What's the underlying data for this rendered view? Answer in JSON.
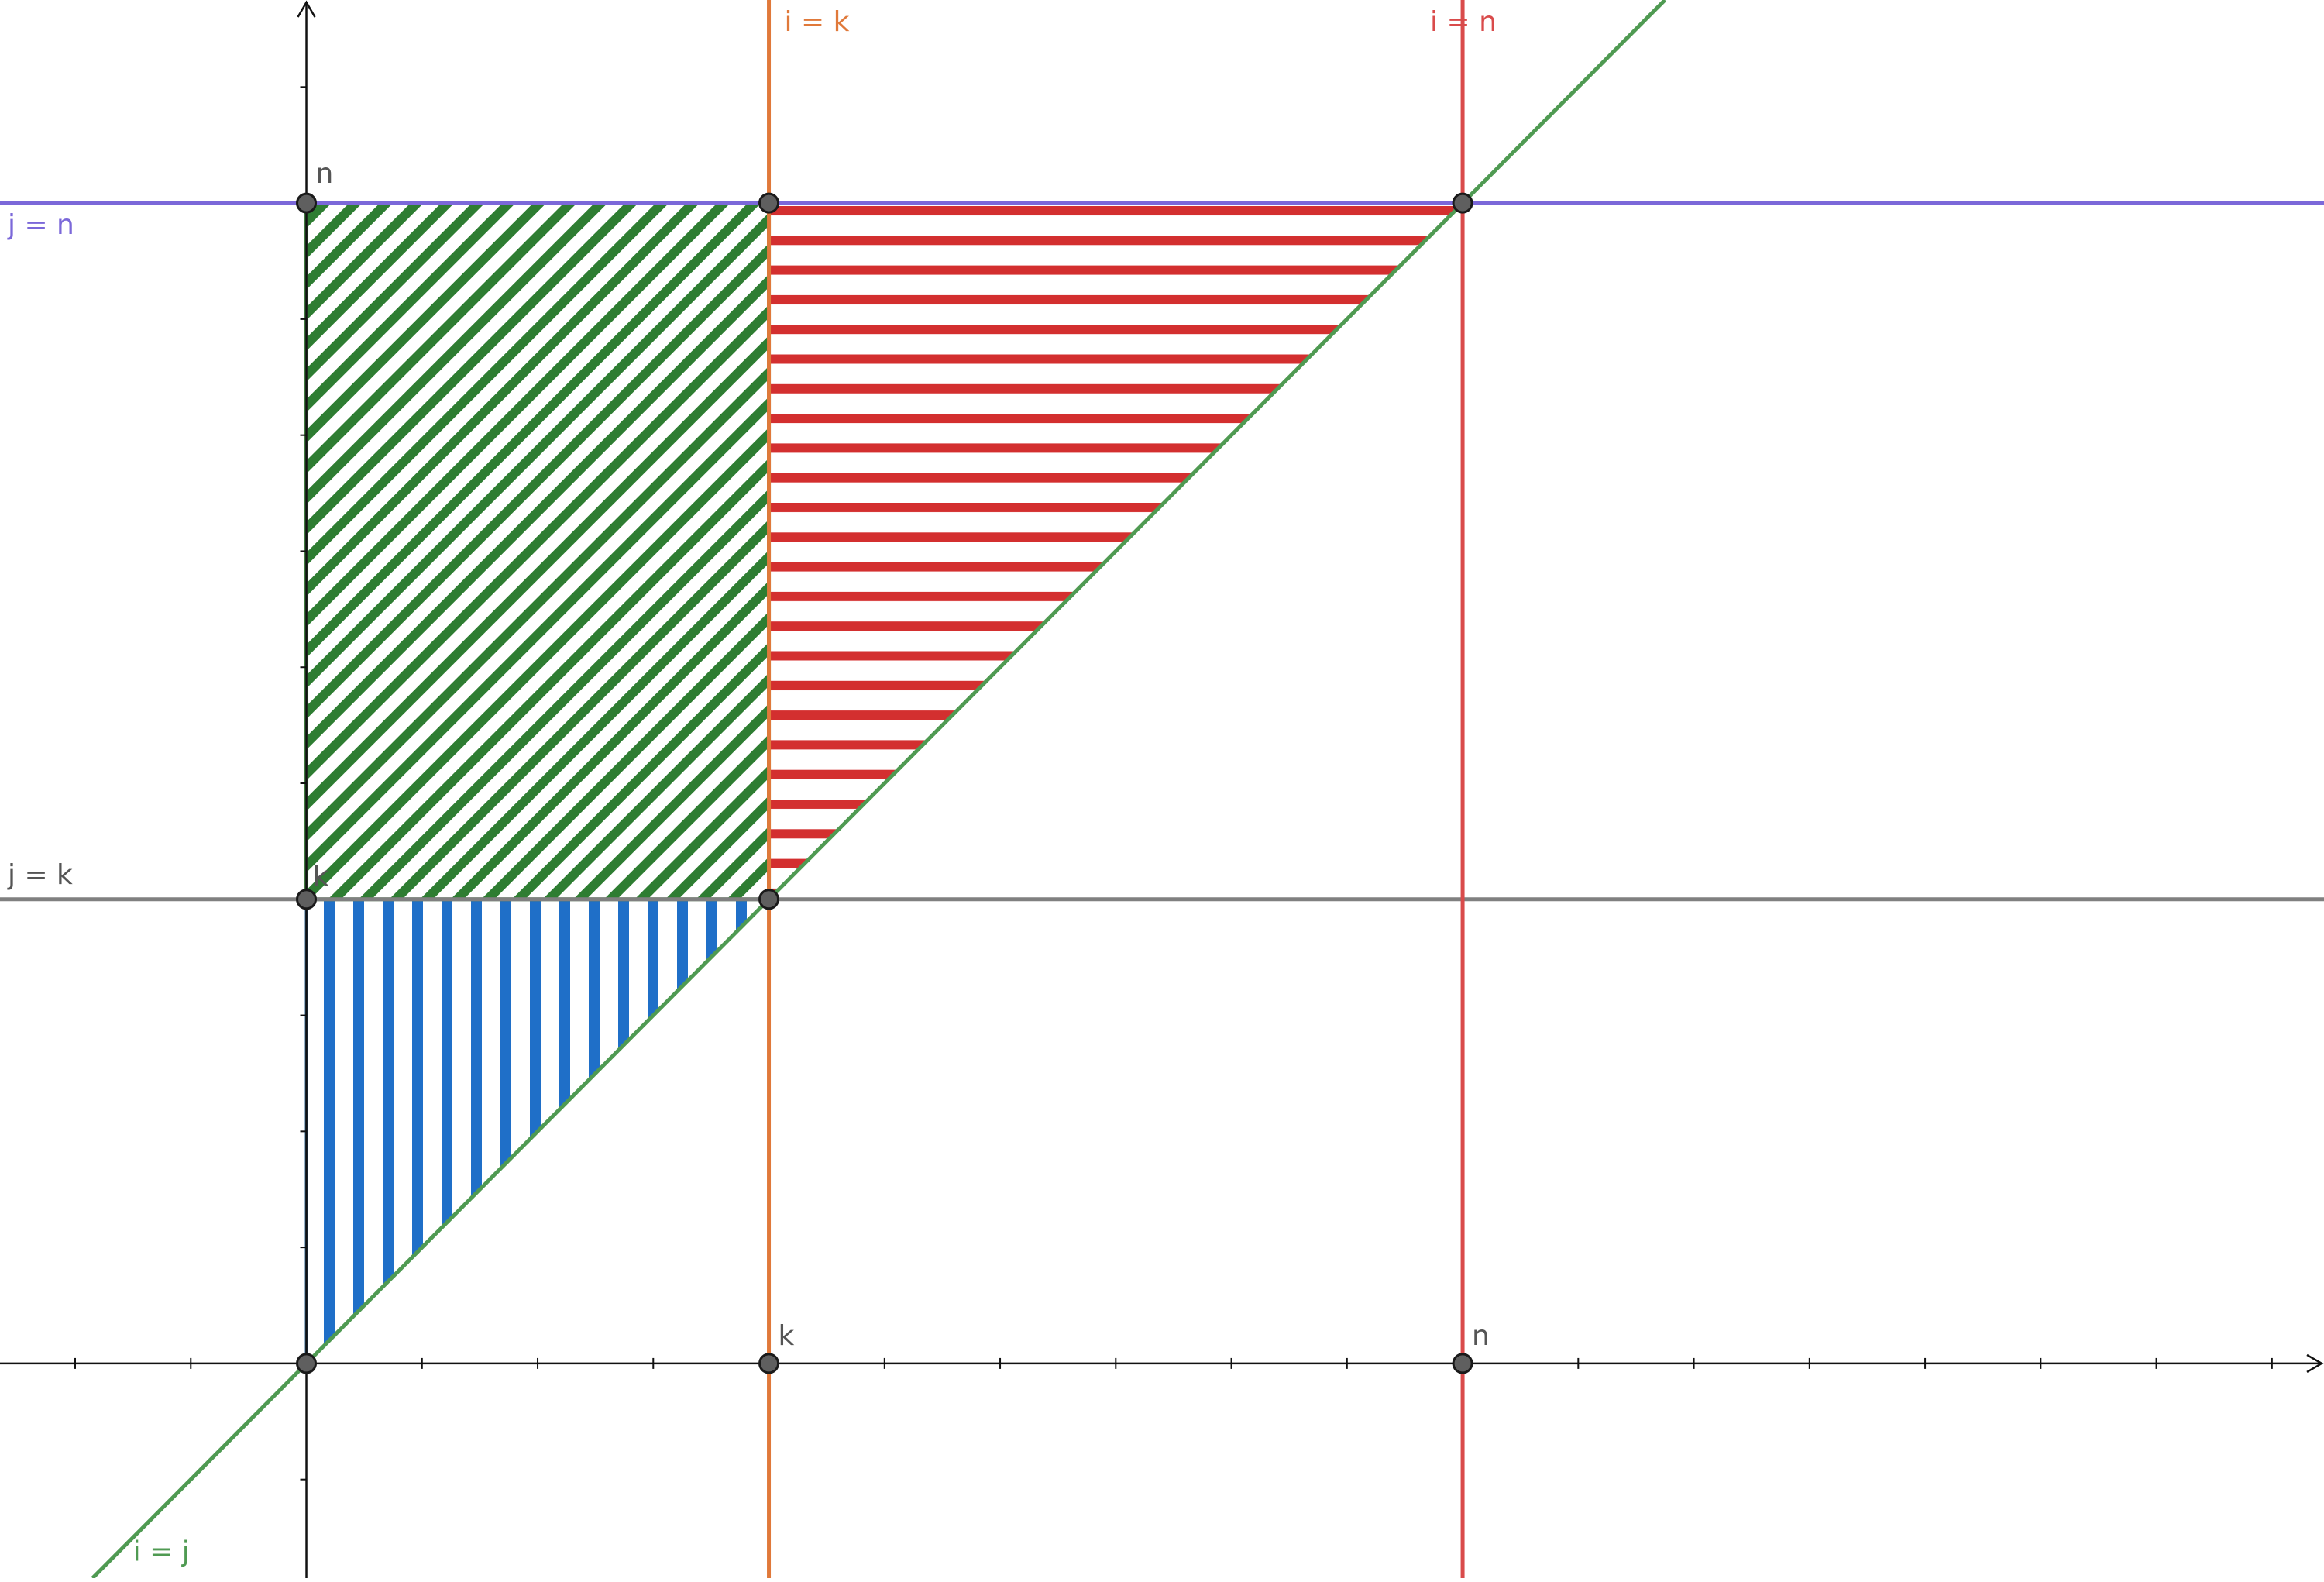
{
  "diagram": {
    "title": "",
    "x_range": [
      -2.65,
      17.45
    ],
    "y_range": [
      -1.85,
      11.75
    ],
    "grid": false,
    "k": 4,
    "n": 10,
    "lines": {
      "j_eq_n": {
        "label": "j = n",
        "color": "#7b68d9"
      },
      "j_eq_k": {
        "label": "j = k",
        "color": "#808080"
      },
      "i_eq_k": {
        "label": "i = k",
        "color": "#e0793a"
      },
      "i_eq_n": {
        "label": "i = n",
        "color": "#d94b4b"
      },
      "i_eq_j": {
        "label": "i = j",
        "color": "#4f9a52"
      }
    },
    "regions": {
      "blue_triangle": {
        "vertices": [
          [
            0,
            0
          ],
          [
            0,
            4
          ],
          [
            4,
            4
          ]
        ],
        "hatch": "vertical",
        "color": "#1f6fc8"
      },
      "green_rectangle": {
        "vertices": [
          [
            0,
            4
          ],
          [
            0,
            10
          ],
          [
            4,
            10
          ],
          [
            4,
            4
          ]
        ],
        "hatch": "diagonal",
        "color": "#2e7d32"
      },
      "red_triangle": {
        "vertices": [
          [
            4,
            4
          ],
          [
            4,
            10
          ],
          [
            10,
            10
          ]
        ],
        "hatch": "horizontal",
        "color": "#d32f2f"
      }
    },
    "axis_labels": {
      "x_k": "k",
      "x_n": "n",
      "y_k": "k",
      "y_n": "n"
    },
    "points": [
      [
        0,
        0
      ],
      [
        4,
        0
      ],
      [
        10,
        0
      ],
      [
        0,
        4
      ],
      [
        4,
        4
      ],
      [
        0,
        10
      ],
      [
        4,
        10
      ],
      [
        10,
        10
      ]
    ]
  }
}
